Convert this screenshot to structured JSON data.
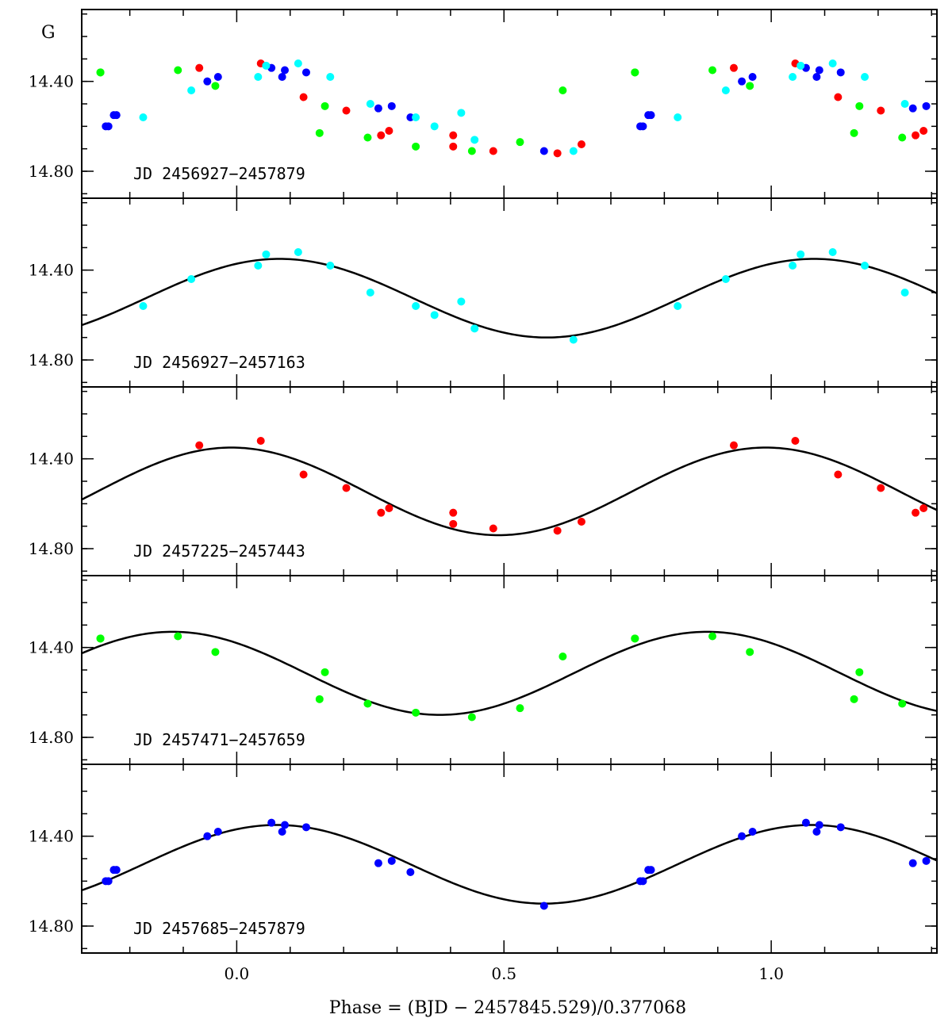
{
  "chart_data": {
    "type": "scatter",
    "ylabel": "G",
    "xlabel": "Phase = (BJD −  2457845.529)/0.377068",
    "xlim": [
      -0.29,
      1.31
    ],
    "ylim": [
      14.92,
      14.08
    ],
    "x_ticks": [
      {
        "v": 0.0,
        "label": "0.0"
      },
      {
        "v": 0.5,
        "label": "0.5"
      },
      {
        "v": 1.0,
        "label": "1.0"
      }
    ],
    "y_ticks": [
      {
        "v": 14.4,
        "label": "14.40"
      },
      {
        "v": 14.8,
        "label": "14.80"
      }
    ],
    "colors": {
      "cyan": "#00ffff",
      "red": "#ff0000",
      "green": "#00ff00",
      "blue": "#0000ff",
      "curve": "#000000"
    },
    "series": {
      "cyan": [
        [
          -0.175,
          14.56
        ],
        [
          -0.085,
          14.44
        ],
        [
          0.04,
          14.38
        ],
        [
          0.055,
          14.33
        ],
        [
          0.115,
          14.32
        ],
        [
          0.175,
          14.38
        ],
        [
          0.25,
          14.5
        ],
        [
          0.335,
          14.56
        ],
        [
          0.37,
          14.6
        ],
        [
          0.42,
          14.54
        ],
        [
          0.445,
          14.66
        ],
        [
          0.63,
          14.71
        ]
      ],
      "red": [
        [
          -0.07,
          14.34
        ],
        [
          0.045,
          14.32
        ],
        [
          0.125,
          14.47
        ],
        [
          0.205,
          14.53
        ],
        [
          0.27,
          14.64
        ],
        [
          0.285,
          14.62
        ],
        [
          0.405,
          14.64
        ],
        [
          0.405,
          14.69
        ],
        [
          0.48,
          14.71
        ],
        [
          0.6,
          14.72
        ],
        [
          0.645,
          14.68
        ]
      ],
      "green": [
        [
          -0.255,
          14.36
        ],
        [
          -0.11,
          14.35
        ],
        [
          -0.04,
          14.42
        ],
        [
          0.165,
          14.51
        ],
        [
          0.155,
          14.63
        ],
        [
          0.245,
          14.65
        ],
        [
          0.335,
          14.69
        ],
        [
          0.44,
          14.71
        ],
        [
          0.53,
          14.67
        ],
        [
          0.61,
          14.44
        ],
        [
          0.745,
          14.36
        ]
      ],
      "blue": [
        [
          -0.24,
          14.6
        ],
        [
          -0.225,
          14.55
        ],
        [
          -0.055,
          14.4
        ],
        [
          -0.035,
          14.38
        ],
        [
          0.065,
          14.34
        ],
        [
          0.085,
          14.38
        ],
        [
          0.09,
          14.35
        ],
        [
          0.13,
          14.36
        ],
        [
          0.265,
          14.52
        ],
        [
          0.29,
          14.51
        ],
        [
          0.325,
          14.56
        ],
        [
          0.575,
          14.71
        ],
        [
          0.755,
          14.6
        ],
        [
          0.77,
          14.55
        ]
      ]
    },
    "panels": [
      {
        "label": "JD 2456927−2457879",
        "series": [
          "green",
          "red",
          "blue",
          "cyan"
        ],
        "fit": null
      },
      {
        "label": "JD 2456927−2457163",
        "series": [
          "cyan"
        ],
        "fit": {
          "mean": 14.525,
          "amp": 0.175,
          "phase_max": 0.08
        }
      },
      {
        "label": "JD 2457225−2457443",
        "series": [
          "red"
        ],
        "fit": {
          "mean": 14.545,
          "amp": 0.195,
          "phase_max": -0.01
        }
      },
      {
        "label": "JD 2457471−2457659",
        "series": [
          "green"
        ],
        "fit": {
          "mean": 14.515,
          "amp": 0.185,
          "phase_max": -0.12
        }
      },
      {
        "label": "JD 2457685−2457879",
        "series": [
          "blue"
        ],
        "fit": {
          "mean": 14.525,
          "amp": 0.175,
          "phase_max": 0.075
        }
      }
    ]
  }
}
